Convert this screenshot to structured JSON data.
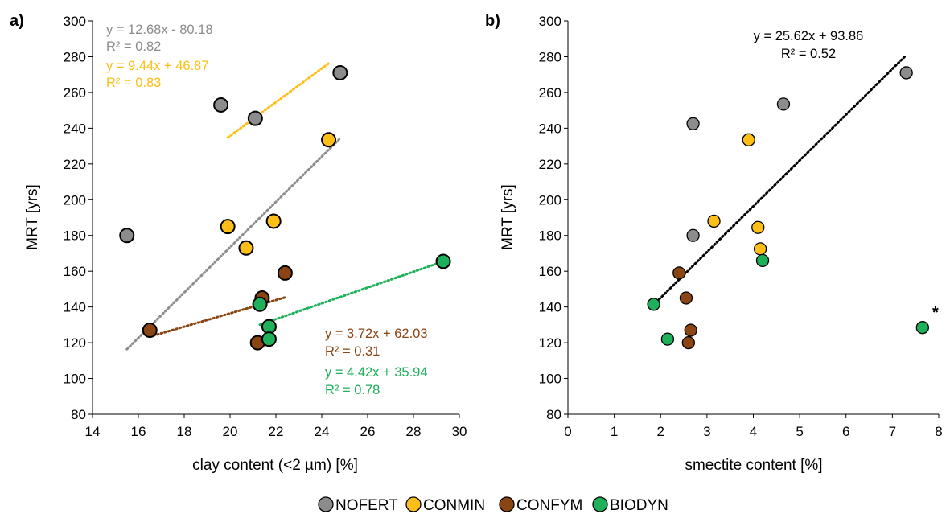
{
  "colors": {
    "NOFERT": "#8c8c8c",
    "CONMIN": "#fdbf17",
    "CONFYM": "#8b4513",
    "BIODYN": "#1fb05a",
    "black": "#000000"
  },
  "legend": [
    {
      "key": "NOFERT",
      "label": "NOFERT"
    },
    {
      "key": "CONMIN",
      "label": "CONMIN"
    },
    {
      "key": "CONFYM",
      "label": "CONFYM"
    },
    {
      "key": "BIODYN",
      "label": "BIODYN"
    }
  ],
  "chart_data": [
    {
      "panel": "a)",
      "type": "scatter",
      "xlabel": "clay content (<2 µm) [%]",
      "ylabel": "MRT [yrs]",
      "xlim": [
        14,
        30
      ],
      "ylim": [
        80,
        300
      ],
      "xticks": [
        14,
        16,
        18,
        20,
        22,
        24,
        26,
        28,
        30
      ],
      "yticks": [
        80,
        100,
        120,
        140,
        160,
        180,
        200,
        220,
        240,
        260,
        280,
        300
      ],
      "series": [
        {
          "name": "NOFERT",
          "points": [
            [
              15.5,
              180
            ],
            [
              19.6,
              253
            ],
            [
              21.1,
              245.5
            ],
            [
              24.8,
              271
            ]
          ]
        },
        {
          "name": "CONMIN",
          "points": [
            [
              19.9,
              185
            ],
            [
              20.7,
              173
            ],
            [
              21.9,
              188
            ],
            [
              24.3,
              233.5
            ]
          ]
        },
        {
          "name": "CONFYM",
          "points": [
            [
              16.5,
              127
            ],
            [
              21.2,
              120
            ],
            [
              21.4,
              145
            ],
            [
              22.4,
              159
            ]
          ]
        },
        {
          "name": "BIODYN",
          "points": [
            [
              21.3,
              141.5
            ],
            [
              21.7,
              129
            ],
            [
              21.7,
              122
            ],
            [
              29.3,
              165.5
            ]
          ]
        }
      ],
      "trendlines": [
        {
          "series": "NOFERT",
          "slope": 12.68,
          "intercept": -80.18,
          "x_range": [
            15.5,
            24.8
          ]
        },
        {
          "series": "CONMIN",
          "slope": 9.44,
          "intercept": 46.87,
          "x_range": [
            19.9,
            24.3
          ]
        },
        {
          "series": "CONFYM",
          "slope": 3.72,
          "intercept": 62.03,
          "x_range": [
            16.5,
            22.4
          ]
        },
        {
          "series": "BIODYN",
          "slope": 4.42,
          "intercept": 35.94,
          "x_range": [
            21.3,
            29.3
          ]
        }
      ],
      "annotations": [
        {
          "series": "NOFERT",
          "lines": [
            "y = 12.68x - 80.18",
            "R² = 0.82"
          ]
        },
        {
          "series": "CONMIN",
          "lines": [
            "y = 9.44x + 46.87",
            "R² = 0.83"
          ]
        },
        {
          "series": "CONFYM",
          "lines": [
            "y = 3.72x + 62.03",
            "R² = 0.31"
          ]
        },
        {
          "series": "BIODYN",
          "lines": [
            "y = 4.42x + 35.94",
            "R² = 0.78"
          ]
        }
      ]
    },
    {
      "panel": "b)",
      "type": "scatter",
      "xlabel": "smectite content [%]",
      "ylabel": "MRT [yrs]",
      "xlim": [
        0,
        8
      ],
      "ylim": [
        80,
        300
      ],
      "xticks": [
        0,
        1,
        2,
        3,
        4,
        5,
        6,
        7,
        8
      ],
      "yticks": [
        80,
        100,
        120,
        140,
        160,
        180,
        200,
        220,
        240,
        260,
        280,
        300
      ],
      "series": [
        {
          "name": "NOFERT",
          "points": [
            [
              2.7,
              242.5
            ],
            [
              4.65,
              253.5
            ],
            [
              7.3,
              271
            ],
            [
              2.7,
              180
            ]
          ]
        },
        {
          "name": "CONMIN",
          "points": [
            [
              3.9,
              233.5
            ],
            [
              3.15,
              188
            ],
            [
              4.1,
              184.5
            ],
            [
              4.15,
              172.5
            ]
          ]
        },
        {
          "name": "CONFYM",
          "points": [
            [
              2.4,
              159
            ],
            [
              2.55,
              145
            ],
            [
              2.65,
              127
            ],
            [
              2.6,
              120
            ]
          ]
        },
        {
          "name": "BIODYN",
          "points": [
            [
              4.2,
              166
            ],
            [
              1.85,
              141.5
            ],
            [
              2.15,
              122
            ],
            [
              7.65,
              128.5
            ]
          ]
        }
      ],
      "trendlines": [
        {
          "series": "all",
          "slope": 25.62,
          "intercept": 93.86,
          "x_range": [
            1.85,
            7.3
          ]
        }
      ],
      "annotations": [
        {
          "series": "all",
          "lines": [
            "y = 25.62x + 93.86",
            "R² = 0.52"
          ]
        }
      ],
      "marker_note": "*"
    }
  ]
}
